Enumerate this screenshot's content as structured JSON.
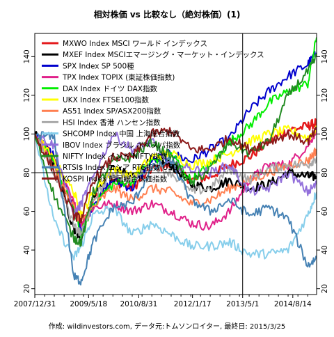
{
  "chart_data": {
    "type": "line",
    "title": "相対株価 vs 比較なし（絶対株価）(1)",
    "footer": "作成: wildinvestors.com, データ元:トムソンロイター, 最終日: 2015/3/25",
    "x_ticks": [
      "2007/12/31",
      "2009/5/18",
      "2010/8/31",
      "2012/1/17",
      "2013/5/1",
      "2014/8/14"
    ],
    "x_range": [
      "2007-12-31",
      "2015-03-25"
    ],
    "y_ticks": [
      20,
      40,
      60,
      80,
      100,
      120,
      140
    ],
    "ylim": [
      17,
      152
    ],
    "reference_lines": {
      "horizontal_y": 80,
      "vertical_x": "2013-05-01"
    },
    "x_dates": [
      "2007-12-31",
      "2008-07-01",
      "2009-01-01",
      "2009-03-10",
      "2009-07-01",
      "2010-01-01",
      "2010-07-01",
      "2011-01-01",
      "2011-07-01",
      "2012-01-01",
      "2012-07-01",
      "2013-01-01",
      "2013-07-01",
      "2014-01-01",
      "2014-07-01",
      "2015-01-01",
      "2015-03-25"
    ],
    "series": [
      {
        "name": "MXWO Index MSCI ワールド インデックス",
        "color": "#e41a1c",
        "width": 2.5,
        "values": [
          100,
          88,
          62,
          52,
          66,
          76,
          72,
          82,
          84,
          76,
          78,
          84,
          88,
          96,
          102,
          104,
          106
        ]
      },
      {
        "name": "MXEF Index MSCIエマージング・マーケット・インデックス",
        "color": "#000000",
        "width": 2.5,
        "values": [
          100,
          84,
          50,
          46,
          68,
          82,
          78,
          86,
          84,
          74,
          72,
          76,
          72,
          74,
          80,
          78,
          78
        ]
      },
      {
        "name": "SPX Index SP 500種",
        "color": "#0000cd",
        "width": 2,
        "values": [
          100,
          88,
          62,
          50,
          64,
          76,
          72,
          86,
          90,
          86,
          92,
          98,
          112,
          122,
          130,
          136,
          142
        ]
      },
      {
        "name": "TPX Index TOPIX (東証株価指数)",
        "color": "#e0218a",
        "width": 2,
        "values": [
          100,
          86,
          64,
          54,
          62,
          64,
          60,
          64,
          60,
          54,
          52,
          60,
          76,
          84,
          84,
          94,
          102
        ]
      },
      {
        "name": "DAX Index ドイツ DAX指数",
        "color": "#00ee00",
        "width": 2,
        "values": [
          100,
          84,
          60,
          48,
          64,
          74,
          76,
          86,
          90,
          76,
          84,
          96,
          104,
          116,
          122,
          126,
          150
        ]
      },
      {
        "name": "UKX Index FTSE100指数",
        "color": "#ffff00",
        "width": 2,
        "values": [
          100,
          86,
          70,
          58,
          70,
          82,
          78,
          88,
          90,
          84,
          86,
          90,
          96,
          100,
          102,
          98,
          102
        ]
      },
      {
        "name": "AS51 Index SP/ASX200指数",
        "color": "#ff7f50",
        "width": 2,
        "values": [
          100,
          82,
          62,
          54,
          62,
          72,
          66,
          72,
          70,
          64,
          66,
          72,
          76,
          80,
          84,
          86,
          92
        ]
      },
      {
        "name": "HSI Index 香港 ハンセン指数",
        "color": "#a9a9a9",
        "width": 2,
        "values": [
          100,
          80,
          52,
          48,
          66,
          80,
          76,
          84,
          80,
          70,
          72,
          82,
          76,
          82,
          84,
          84,
          88
        ]
      },
      {
        "name": "SHCOMP Index 中国 上海総合指数",
        "color": "#87ceeb",
        "width": 2,
        "values": [
          100,
          54,
          36,
          42,
          58,
          62,
          48,
          54,
          48,
          42,
          42,
          44,
          38,
          38,
          40,
          58,
          70
        ]
      },
      {
        "name": "IBOV Index ブラジル ボベスパ指数",
        "color": "#9370db",
        "width": 2,
        "values": [
          100,
          94,
          58,
          64,
          78,
          100,
          92,
          96,
          84,
          82,
          80,
          84,
          70,
          72,
          80,
          70,
          74
        ]
      },
      {
        "name": "NIFTY Index インド NIFTY指数",
        "color": "#228b22",
        "width": 2,
        "values": [
          100,
          68,
          46,
          44,
          70,
          86,
          88,
          96,
          88,
          74,
          82,
          96,
          90,
          96,
          120,
          132,
          140
        ]
      },
      {
        "name": "RTSI$ Index ロシア RTS指数 USD",
        "color": "#4682b4",
        "width": 2,
        "values": [
          100,
          98,
          26,
          24,
          44,
          62,
          64,
          82,
          86,
          66,
          60,
          66,
          58,
          62,
          56,
          32,
          36
        ]
      },
      {
        "name": "KOSPI Index 韓国総合株価指数",
        "color": "#8b1a1a",
        "width": 2,
        "values": [
          100,
          80,
          58,
          56,
          76,
          88,
          88,
          100,
          102,
          92,
          92,
          98,
          92,
          96,
          100,
          96,
          102
        ]
      }
    ]
  }
}
